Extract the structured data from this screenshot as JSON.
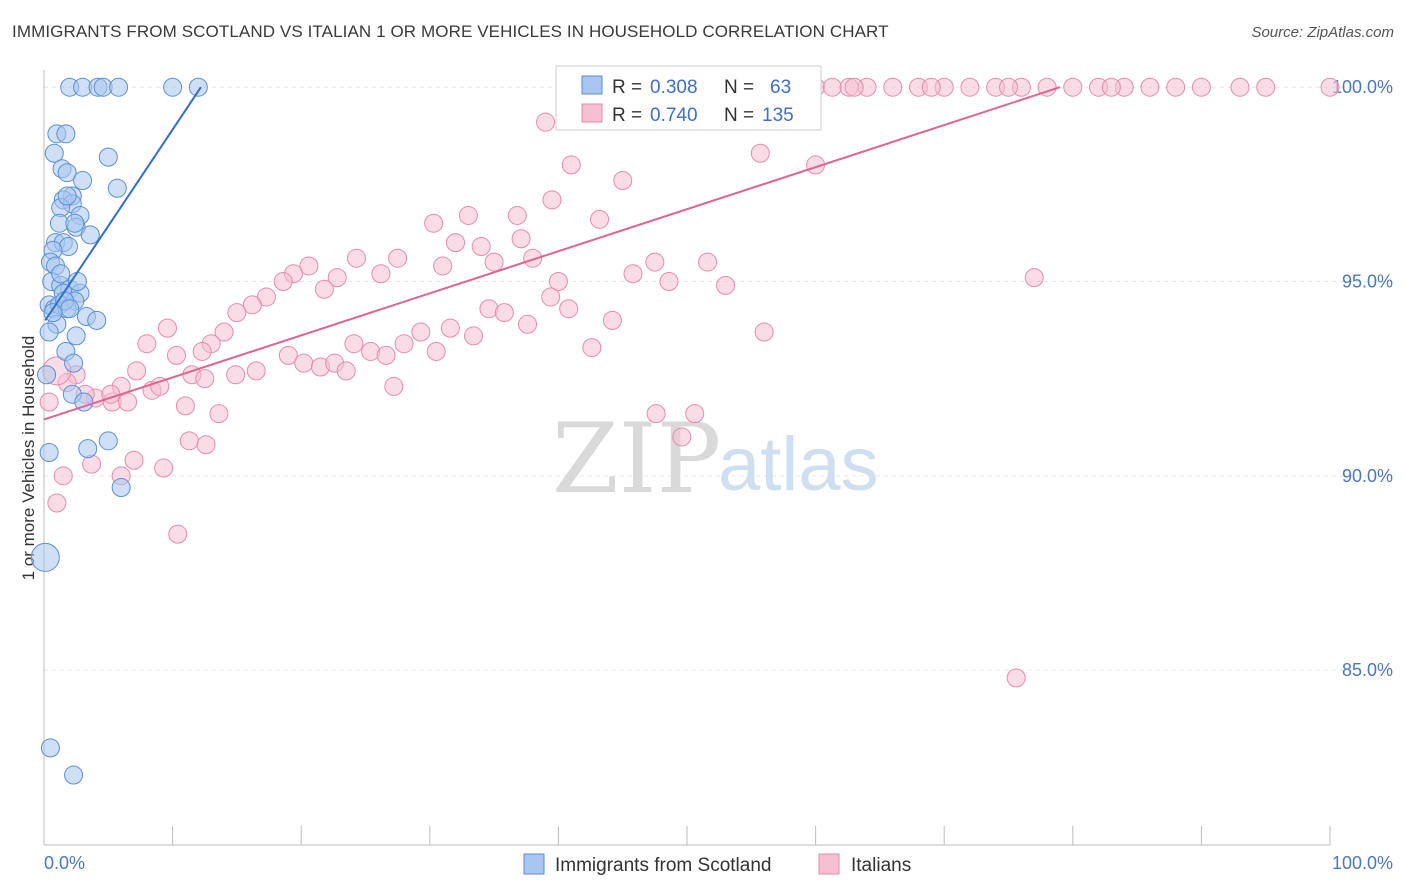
{
  "header": {
    "title": "IMMIGRANTS FROM SCOTLAND VS ITALIAN 1 OR MORE VEHICLES IN HOUSEHOLD CORRELATION CHART",
    "source": "Source: ZipAtlas.com"
  },
  "watermark": {
    "zip": "ZIP",
    "atlas": "atlas"
  },
  "legend": {
    "rows": [
      {
        "r_label": "R = ",
        "r_value": "0.308",
        "n_label": "N = ",
        "n_value": "63",
        "color": "#7aa7e6"
      },
      {
        "r_label": "R = ",
        "r_value": "0.740",
        "n_label": "N = ",
        "n_value": "135",
        "color": "#f09ab8"
      }
    ]
  },
  "bottom_legend": [
    "Immigrants from Scotland",
    "Italians"
  ],
  "colors": {
    "scotland_fill": "#a8c6ef",
    "scotland_stroke": "#5b8fd8",
    "scotland_line": "#2f6fce",
    "italian_fill": "#f6bfd2",
    "italian_stroke": "#e98aad",
    "italian_line": "#e0648f",
    "tick_label": "#4a78c2",
    "grid": "#e6e6e6"
  },
  "chart_data": {
    "type": "scatter",
    "title": "IMMIGRANTS FROM SCOTLAND VS ITALIAN 1 OR MORE VEHICLES IN HOUSEHOLD CORRELATION CHART",
    "xlabel": "",
    "ylabel": "1 or more Vehicles in Household",
    "xlim": [
      0,
      100
    ],
    "ylim": [
      80.5,
      100.7
    ],
    "x_ticks": [
      "0.0%",
      "100.0%"
    ],
    "y_ticks": [
      {
        "value": 100,
        "label": "100.0%"
      },
      {
        "value": 95,
        "label": "95.0%"
      },
      {
        "value": 90,
        "label": "90.0%"
      },
      {
        "value": 85,
        "label": "85.0%"
      }
    ],
    "grid": true,
    "legend_position": "top-center",
    "series": [
      {
        "name": "Immigrants from Scotland",
        "r": 0.308,
        "n": 63,
        "trend": [
          [
            0.1,
            94.0
          ],
          [
            12.2,
            100.0
          ]
        ],
        "points": [
          [
            2.0,
            100
          ],
          [
            3.0,
            100
          ],
          [
            4.2,
            100
          ],
          [
            4.6,
            100
          ],
          [
            5.8,
            100
          ],
          [
            10.0,
            100
          ],
          [
            12.0,
            100
          ],
          [
            1.0,
            98.8
          ],
          [
            1.7,
            98.8
          ],
          [
            0.8,
            98.3
          ],
          [
            5.0,
            98.2
          ],
          [
            1.4,
            97.9
          ],
          [
            1.8,
            97.8
          ],
          [
            3.0,
            97.6
          ],
          [
            5.7,
            97.4
          ],
          [
            2.2,
            97.2
          ],
          [
            1.5,
            97.1
          ],
          [
            2.2,
            97.0
          ],
          [
            1.3,
            96.9
          ],
          [
            2.8,
            96.7
          ],
          [
            1.2,
            96.5
          ],
          [
            2.5,
            96.4
          ],
          [
            2.4,
            96.5
          ],
          [
            3.6,
            96.2
          ],
          [
            0.9,
            96.0
          ],
          [
            1.5,
            96.0
          ],
          [
            1.9,
            95.9
          ],
          [
            0.7,
            95.8
          ],
          [
            0.5,
            95.5
          ],
          [
            0.9,
            95.4
          ],
          [
            0.6,
            95.0
          ],
          [
            1.3,
            94.9
          ],
          [
            2.0,
            94.8
          ],
          [
            1.5,
            94.7
          ],
          [
            2.8,
            94.7
          ],
          [
            0.4,
            94.4
          ],
          [
            0.8,
            94.3
          ],
          [
            1.2,
            94.4
          ],
          [
            2.4,
            94.5
          ],
          [
            1.8,
            94.3
          ],
          [
            3.3,
            94.1
          ],
          [
            1.0,
            93.9
          ],
          [
            4.1,
            94.0
          ],
          [
            0.4,
            93.7
          ],
          [
            2.5,
            93.6
          ],
          [
            1.7,
            93.2
          ],
          [
            2.3,
            92.9
          ],
          [
            0.2,
            92.6
          ],
          [
            2.2,
            92.1
          ],
          [
            3.1,
            91.9
          ],
          [
            0.4,
            90.6
          ],
          [
            3.4,
            90.7
          ],
          [
            5.0,
            90.9
          ],
          [
            6.0,
            89.7
          ],
          [
            0.1,
            87.9
          ],
          [
            0.5,
            83.0
          ],
          [
            2.3,
            82.3
          ],
          [
            1.6,
            94.5
          ],
          [
            2.0,
            94.3
          ],
          [
            0.7,
            94.2
          ],
          [
            1.3,
            95.2
          ],
          [
            2.6,
            95.0
          ],
          [
            1.8,
            97.2
          ]
        ]
      },
      {
        "name": "Italians",
        "r": 0.74,
        "n": 135,
        "trend": [
          [
            0,
            91.45
          ],
          [
            79,
            100.0
          ]
        ],
        "points": [
          [
            41.4,
            100
          ],
          [
            42.2,
            100
          ],
          [
            43.5,
            100
          ],
          [
            44.8,
            100
          ],
          [
            45.6,
            100
          ],
          [
            46.4,
            100
          ],
          [
            47.3,
            100
          ],
          [
            48.2,
            100
          ],
          [
            49.0,
            100
          ],
          [
            49.9,
            100
          ],
          [
            50.8,
            100
          ],
          [
            52.1,
            100
          ],
          [
            53.4,
            100
          ],
          [
            54.7,
            100
          ],
          [
            56.0,
            100
          ],
          [
            57.3,
            100
          ],
          [
            58.6,
            100
          ],
          [
            60.0,
            100
          ],
          [
            61.3,
            100
          ],
          [
            62.6,
            100
          ],
          [
            64.0,
            100
          ],
          [
            66.0,
            100
          ],
          [
            68.0,
            100
          ],
          [
            70.0,
            100
          ],
          [
            72.0,
            100
          ],
          [
            74.0,
            100
          ],
          [
            76.0,
            100
          ],
          [
            78.0,
            100
          ],
          [
            80.0,
            100
          ],
          [
            82.0,
            100
          ],
          [
            84.0,
            100
          ],
          [
            86.0,
            100
          ],
          [
            88.0,
            100
          ],
          [
            90.0,
            100
          ],
          [
            93.0,
            100
          ],
          [
            95.0,
            100
          ],
          [
            100.0,
            100
          ],
          [
            57.0,
            100
          ],
          [
            63.0,
            100
          ],
          [
            69.0,
            100
          ],
          [
            75.0,
            100
          ],
          [
            83.0,
            100
          ],
          [
            39.0,
            99.1
          ],
          [
            59.3,
            99.3
          ],
          [
            55.7,
            98.3
          ],
          [
            41.0,
            98.0
          ],
          [
            45.0,
            97.6
          ],
          [
            39.5,
            97.1
          ],
          [
            36.8,
            96.7
          ],
          [
            43.2,
            96.6
          ],
          [
            37.1,
            96.1
          ],
          [
            33.0,
            96.7
          ],
          [
            30.3,
            96.5
          ],
          [
            32.0,
            96.0
          ],
          [
            34.0,
            95.9
          ],
          [
            35.0,
            95.5
          ],
          [
            38.0,
            95.6
          ],
          [
            40.0,
            95.0
          ],
          [
            31.0,
            95.4
          ],
          [
            27.5,
            95.6
          ],
          [
            26.2,
            95.2
          ],
          [
            24.3,
            95.6
          ],
          [
            22.8,
            95.1
          ],
          [
            21.8,
            94.8
          ],
          [
            20.6,
            95.4
          ],
          [
            19.4,
            95.2
          ],
          [
            18.6,
            95.0
          ],
          [
            17.3,
            94.6
          ],
          [
            16.2,
            94.4
          ],
          [
            15.0,
            94.2
          ],
          [
            14.0,
            93.7
          ],
          [
            13.0,
            93.4
          ],
          [
            12.3,
            93.2
          ],
          [
            11.5,
            92.6
          ],
          [
            10.3,
            93.1
          ],
          [
            9.6,
            93.8
          ],
          [
            8.0,
            93.4
          ],
          [
            7.2,
            92.7
          ],
          [
            6.0,
            92.3
          ],
          [
            5.3,
            91.9
          ],
          [
            4.0,
            92.0
          ],
          [
            3.2,
            92.1
          ],
          [
            2.5,
            92.6
          ],
          [
            1.8,
            92.4
          ],
          [
            1.0,
            92.7
          ],
          [
            0.4,
            91.9
          ],
          [
            8.4,
            92.2
          ],
          [
            9.0,
            92.3
          ],
          [
            11.0,
            91.8
          ],
          [
            12.5,
            92.5
          ],
          [
            13.6,
            91.6
          ],
          [
            14.9,
            92.6
          ],
          [
            16.5,
            92.7
          ],
          [
            19.0,
            93.1
          ],
          [
            20.2,
            92.9
          ],
          [
            21.5,
            92.8
          ],
          [
            22.6,
            92.9
          ],
          [
            23.5,
            92.7
          ],
          [
            24.1,
            93.4
          ],
          [
            25.4,
            93.2
          ],
          [
            26.6,
            93.1
          ],
          [
            27.2,
            92.3
          ],
          [
            28.0,
            93.4
          ],
          [
            29.3,
            93.7
          ],
          [
            30.5,
            93.2
          ],
          [
            31.6,
            93.8
          ],
          [
            33.4,
            93.6
          ],
          [
            34.6,
            94.3
          ],
          [
            35.8,
            94.2
          ],
          [
            37.6,
            93.9
          ],
          [
            39.4,
            94.6
          ],
          [
            40.8,
            94.3
          ],
          [
            42.6,
            93.3
          ],
          [
            44.2,
            94.0
          ],
          [
            45.8,
            95.2
          ],
          [
            47.5,
            95.5
          ],
          [
            48.6,
            95.0
          ],
          [
            51.6,
            95.5
          ],
          [
            53.0,
            94.9
          ],
          [
            56.0,
            93.7
          ],
          [
            47.6,
            91.6
          ],
          [
            49.6,
            91.0
          ],
          [
            50.6,
            91.6
          ],
          [
            60.0,
            98.0
          ],
          [
            77.0,
            95.1
          ],
          [
            75.6,
            84.8
          ],
          [
            10.4,
            88.5
          ],
          [
            7.0,
            90.4
          ],
          [
            6.0,
            90.0
          ],
          [
            9.3,
            90.2
          ],
          [
            11.3,
            90.9
          ],
          [
            12.6,
            90.8
          ],
          [
            1.0,
            89.3
          ],
          [
            3.7,
            90.3
          ],
          [
            5.2,
            92.1
          ],
          [
            6.5,
            91.9
          ],
          [
            1.5,
            90.0
          ]
        ]
      }
    ]
  }
}
